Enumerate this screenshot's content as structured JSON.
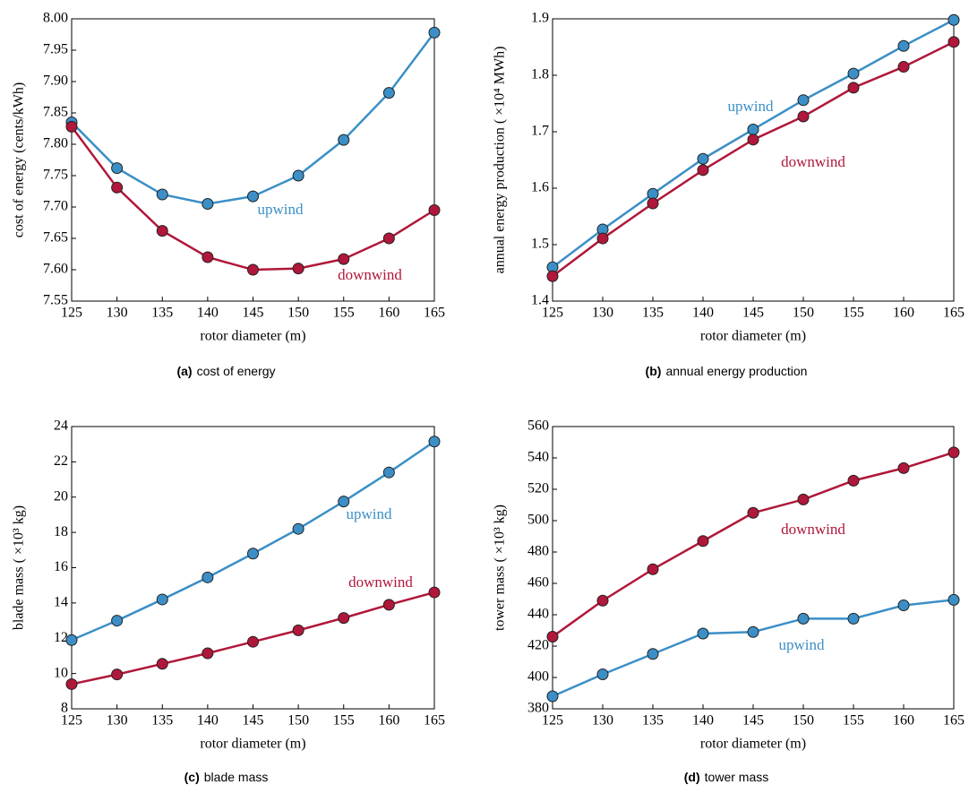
{
  "chart_data": [
    {
      "type": "line",
      "caption": {
        "label": "(a)",
        "text": "cost of energy"
      },
      "xlabel": "rotor diameter (m)",
      "ylabel": "cost of energy (cents/kWh)",
      "x": [
        125,
        130,
        135,
        140,
        145,
        150,
        155,
        160,
        165
      ],
      "xlim": [
        125,
        165
      ],
      "xticks": [
        125,
        130,
        135,
        140,
        145,
        150,
        155,
        160,
        165
      ],
      "ylim": [
        7.55,
        8.0
      ],
      "yticks": [
        7.55,
        {
          "value": 7.6,
          "label": "7.60"
        },
        7.65,
        {
          "value": 7.7,
          "label": "7.70"
        },
        7.75,
        {
          "value": 7.8,
          "label": "7.80"
        },
        7.85,
        {
          "value": 7.9,
          "label": "7.90"
        },
        7.95,
        {
          "value": 8.0,
          "label": "8.00"
        }
      ],
      "series": [
        {
          "name": "upwind",
          "color": "#3b8fc6",
          "values": [
            7.835,
            7.762,
            7.72,
            7.705,
            7.717,
            7.75,
            7.807,
            7.882,
            7.978
          ]
        },
        {
          "name": "downwind",
          "color": "#b0173a",
          "values": [
            7.828,
            7.731,
            7.662,
            7.62,
            7.6,
            7.602,
            7.617,
            7.65,
            7.695
          ]
        }
      ]
    },
    {
      "type": "line",
      "caption": {
        "label": "(b)",
        "text": "annual energy production"
      },
      "xlabel": "rotor diameter (m)",
      "ylabel": "annual energy production ( ×10⁴  MWh)",
      "x": [
        125,
        130,
        135,
        140,
        145,
        150,
        155,
        160,
        165
      ],
      "xlim": [
        125,
        165
      ],
      "xticks": [
        125,
        130,
        135,
        140,
        145,
        150,
        155,
        160,
        165
      ],
      "ylim": [
        1.4,
        1.9
      ],
      "yticks": [
        1.4,
        1.5,
        1.6,
        1.7,
        1.8,
        1.9
      ],
      "series": [
        {
          "name": "upwind",
          "color": "#3b8fc6",
          "values": [
            1.46,
            1.527,
            1.59,
            1.652,
            1.704,
            1.756,
            1.803,
            1.852,
            1.898
          ]
        },
        {
          "name": "downwind",
          "color": "#b0173a",
          "values": [
            1.444,
            1.511,
            1.573,
            1.632,
            1.686,
            1.727,
            1.778,
            1.815,
            1.859
          ]
        }
      ]
    },
    {
      "type": "line",
      "caption": {
        "label": "(c)",
        "text": "blade mass"
      },
      "xlabel": "rotor diameter (m)",
      "ylabel": "blade mass ( ×10³  kg)",
      "x": [
        125,
        130,
        135,
        140,
        145,
        150,
        155,
        160,
        165
      ],
      "xlim": [
        125,
        165
      ],
      "xticks": [
        125,
        130,
        135,
        140,
        145,
        150,
        155,
        160,
        165
      ],
      "ylim": [
        8,
        24
      ],
      "yticks": [
        8,
        10,
        12,
        14,
        16,
        18,
        20,
        22,
        24
      ],
      "series": [
        {
          "name": "upwind",
          "color": "#3b8fc6",
          "values": [
            11.9,
            13.0,
            14.2,
            15.45,
            16.8,
            18.2,
            19.75,
            21.4,
            23.15
          ]
        },
        {
          "name": "downwind",
          "color": "#b0173a",
          "values": [
            9.4,
            9.95,
            10.55,
            11.15,
            11.8,
            12.45,
            13.15,
            13.9,
            14.6
          ]
        }
      ]
    },
    {
      "type": "line",
      "caption": {
        "label": "(d)",
        "text": "tower mass"
      },
      "xlabel": "rotor diameter (m)",
      "ylabel": "tower mass ( ×10³  kg)",
      "x": [
        125,
        130,
        135,
        140,
        145,
        150,
        155,
        160,
        165
      ],
      "xlim": [
        125,
        165
      ],
      "xticks": [
        125,
        130,
        135,
        140,
        145,
        150,
        155,
        160,
        165
      ],
      "ylim": [
        380,
        560
      ],
      "yticks": [
        380,
        400,
        420,
        440,
        460,
        480,
        500,
        520,
        540,
        560
      ],
      "series": [
        {
          "name": "upwind",
          "color": "#3b8fc6",
          "values": [
            388,
            402,
            415,
            428,
            429,
            437.5,
            437.5,
            446,
            449.5
          ]
        },
        {
          "name": "downwind",
          "color": "#b0173a",
          "values": [
            426,
            449,
            469,
            487,
            505,
            513.5,
            525.5,
            533.5,
            543.5
          ]
        }
      ]
    }
  ]
}
